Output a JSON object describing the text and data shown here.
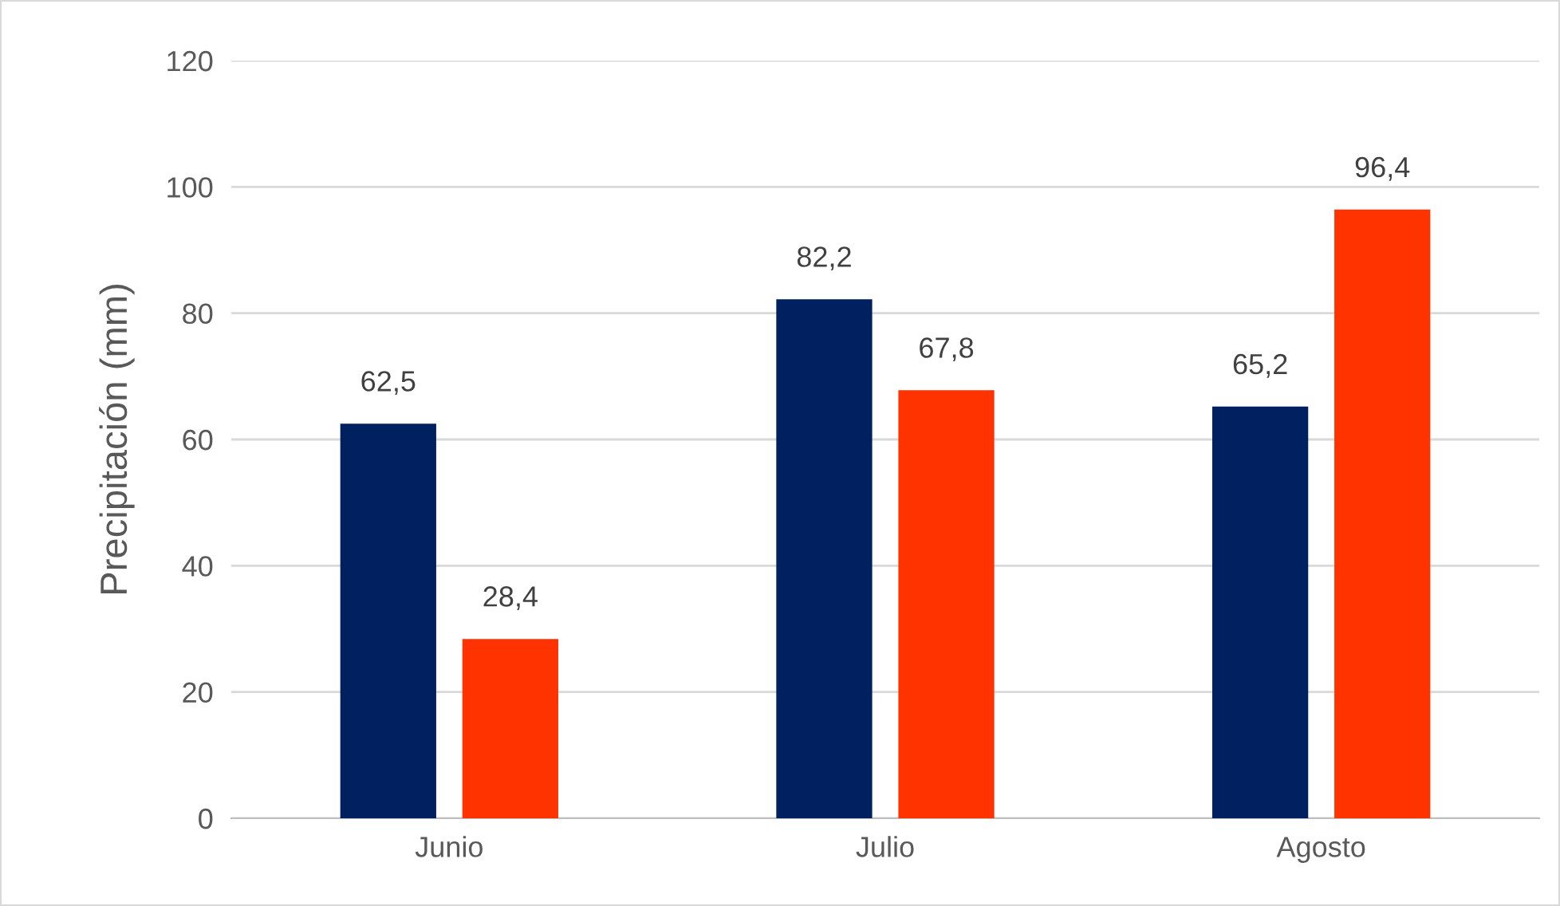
{
  "chart_data": {
    "type": "bar",
    "ylabel": "Precipitación (mm)",
    "categories": [
      "Junio",
      "Julio",
      "Agosto"
    ],
    "series": [
      {
        "color": "#002060",
        "values": [
          62.5,
          82.2,
          65.2
        ],
        "value_labels": [
          "62,5",
          "82,2",
          "65,2"
        ]
      },
      {
        "color": "#ff3300",
        "values": [
          28.4,
          67.8,
          96.4
        ],
        "value_labels": [
          "28,4",
          "67,8",
          "96,4"
        ]
      }
    ],
    "ylim": [
      0,
      120
    ],
    "yticks": [
      0,
      20,
      40,
      60,
      80,
      100,
      120
    ],
    "grid": "y"
  }
}
